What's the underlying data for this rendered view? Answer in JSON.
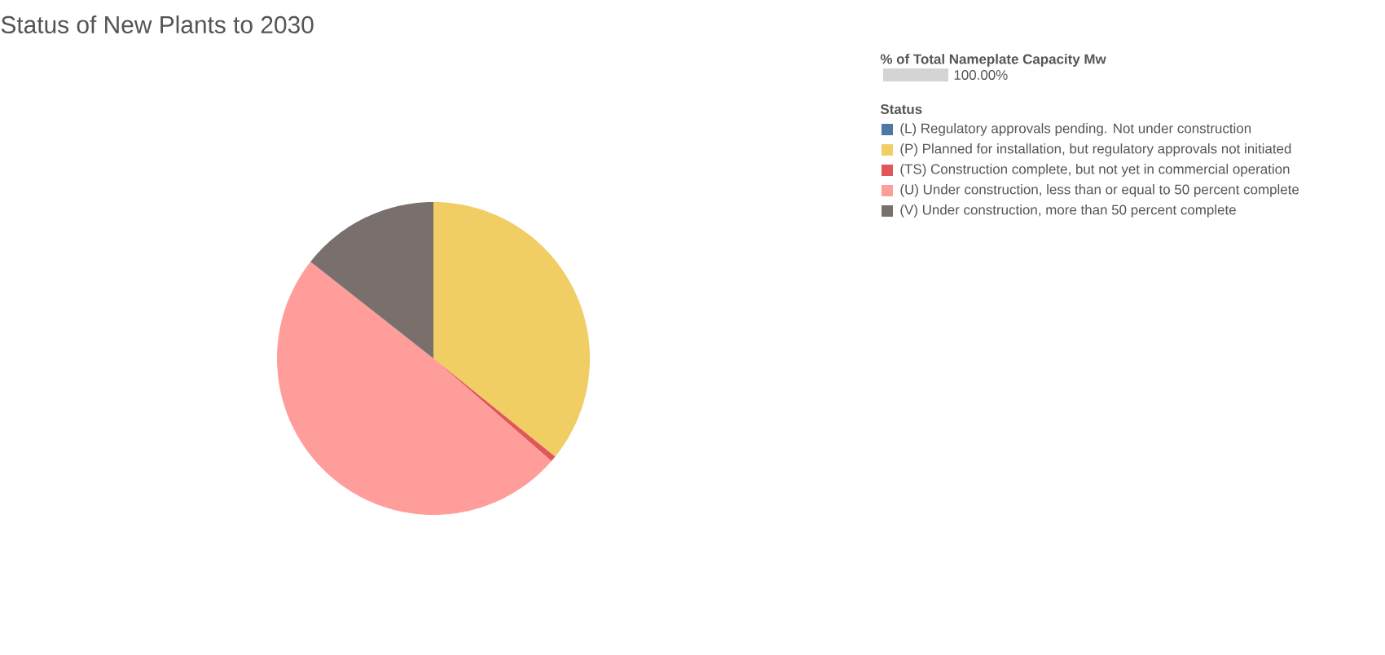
{
  "chart_data": {
    "type": "pie",
    "title": "Status of New Plants to 2030",
    "legend_title": "Status",
    "categories": [
      "(L) Regulatory approvals pending. Not under construction",
      "(P) Planned for installation, but regulatory approvals not initiated",
      "(TS) Construction complete, but not yet in commercial operation",
      "(U) Under construction, less than or equal to 50 percent complete",
      "(V) Under construction, more than 50 percent complete"
    ],
    "values": [
      0,
      35.8,
      0.6,
      49.2,
      14.4
    ],
    "colors": [
      "#4e79a7",
      "#f1ce63",
      "#e15759",
      "#ff9d9a",
      "#79706e"
    ],
    "legend": "top right",
    "annotations": [
      "% of Total Nameplate Capacity Mw",
      "100.00%"
    ]
  }
}
